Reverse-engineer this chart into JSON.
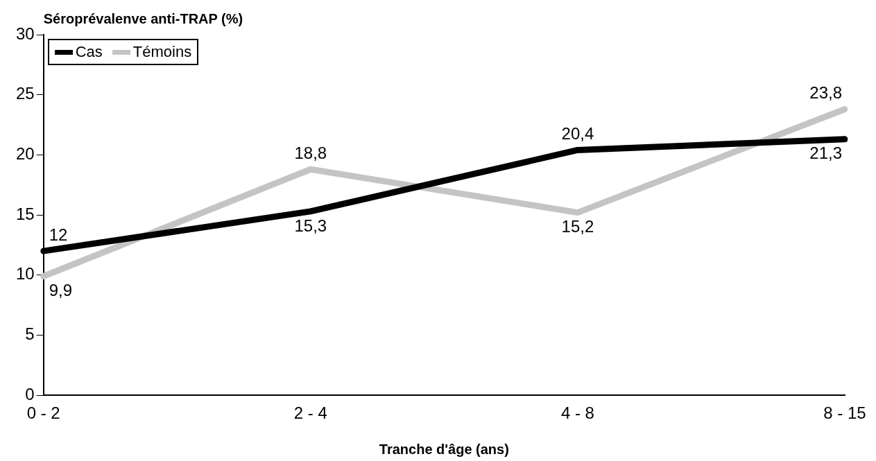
{
  "chart_data": {
    "type": "line",
    "ylabel": "Séroprévalenve anti-TRAP (%)",
    "xlabel": "Tranche d'âge (ans)",
    "categories": [
      "0 - 2",
      "2 - 4",
      "4 - 8",
      "8 - 15"
    ],
    "series": [
      {
        "name": "Cas",
        "color": "#000000",
        "values": [
          12,
          15.3,
          20.4,
          21.3
        ],
        "value_labels": [
          "12",
          "15,3",
          "20,4",
          "21,3"
        ]
      },
      {
        "name": "Témoins",
        "color": "#c4c4c4",
        "values": [
          9.9,
          18.8,
          15.2,
          23.8
        ],
        "value_labels": [
          "9,9",
          "18,8",
          "15,2",
          "23,8"
        ]
      }
    ],
    "ylim": [
      0,
      30
    ],
    "yticks": [
      0,
      5,
      10,
      15,
      20,
      25,
      30
    ],
    "grid": false,
    "legend": "top left",
    "marker": "none",
    "line_style": "solid"
  }
}
